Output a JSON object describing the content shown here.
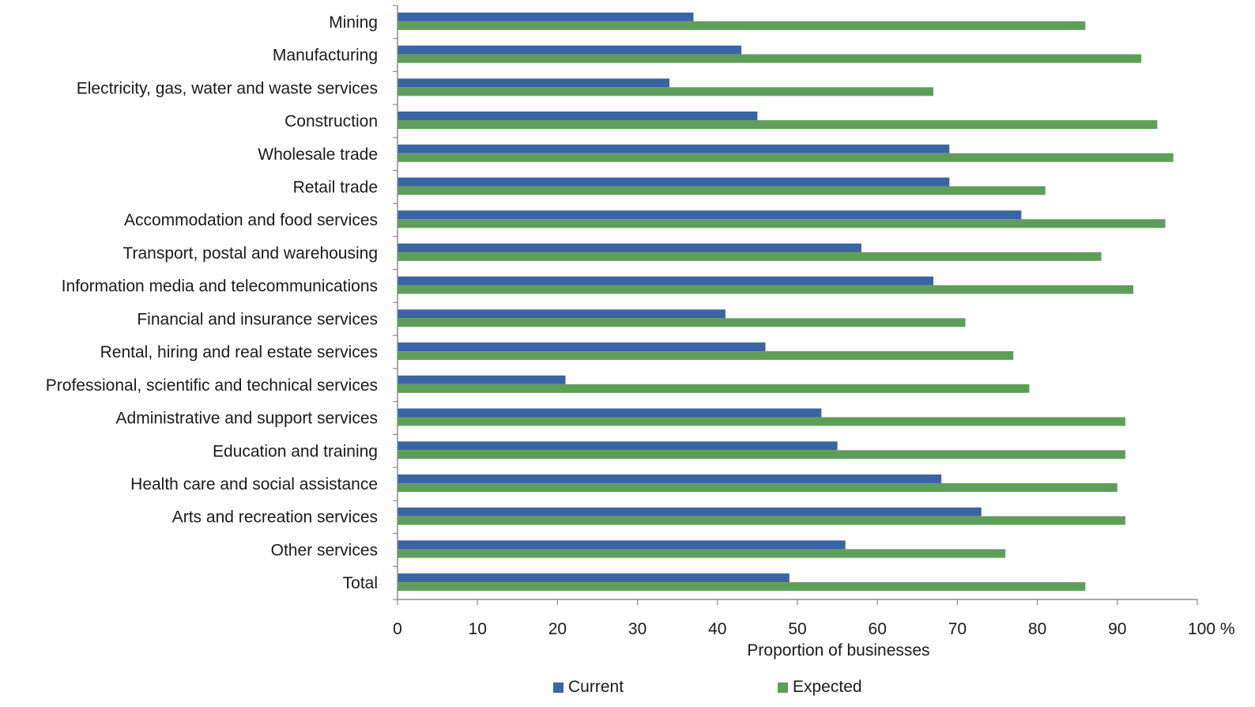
{
  "chart_data": {
    "type": "bar",
    "orientation": "horizontal",
    "categories": [
      "Mining",
      "Manufacturing",
      "Electricity, gas, water and waste services",
      "Construction",
      "Wholesale trade",
      "Retail trade",
      "Accommodation and food services",
      "Transport, postal and warehousing",
      "Information media and telecommunications",
      "Financial and insurance services",
      "Rental, hiring and real estate services",
      "Professional, scientific and technical services",
      "Administrative and support services",
      "Education and training",
      "Health care and social assistance",
      "Arts and recreation services",
      "Other services",
      "Total"
    ],
    "series": [
      {
        "name": "Current",
        "color": "#3a64a4",
        "values": [
          37,
          43,
          34,
          45,
          69,
          69,
          78,
          58,
          67,
          41,
          46,
          21,
          53,
          55,
          68,
          73,
          56,
          49
        ]
      },
      {
        "name": "Expected",
        "color": "#5f9e5a",
        "values": [
          86,
          93,
          67,
          95,
          97,
          81,
          96,
          88,
          92,
          71,
          77,
          79,
          91,
          91,
          90,
          91,
          76,
          86
        ]
      }
    ],
    "xlabel": "Proportion of businesses",
    "xlim": [
      0,
      100
    ],
    "xticks": [
      "0",
      "10",
      "20",
      "30",
      "40",
      "50",
      "60",
      "70",
      "80",
      "90",
      "100 %"
    ],
    "grid": false,
    "legend_position": "bottom"
  }
}
